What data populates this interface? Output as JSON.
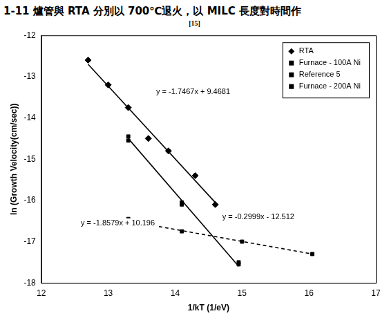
{
  "chart_data": {
    "type": "scatter",
    "title": "1-11 爐管與 RTA 分別以 700℃退火，以 MILC 長度對時間作",
    "subtitle": "[15]",
    "x_label": "1/kT (1/eV)",
    "y_label": "ln (Growth Velocity(cm/sec))",
    "xlim": [
      12,
      17
    ],
    "xticks": [
      12,
      13,
      14,
      15,
      16,
      17
    ],
    "ylim": [
      -18,
      -12
    ],
    "yticks": [
      -18,
      -17,
      -16,
      -15,
      -14,
      -13,
      -12
    ],
    "grid": false,
    "legend": "upper right",
    "series": [
      {
        "name": "RTA",
        "color": "#000000",
        "marker": "diamond",
        "x": [
          12.7,
          13.0,
          13.3,
          13.6,
          13.9,
          14.3,
          14.6
        ],
        "values": [
          -12.6,
          -13.2,
          -13.75,
          -14.5,
          -14.8,
          -15.4,
          -16.1
        ]
      },
      {
        "name": "Furnace - 100A Ni",
        "color": "#000000",
        "marker": "square",
        "x": [
          13.3,
          14.1,
          14.95
        ],
        "values": [
          -14.45,
          -16.1,
          -17.5
        ]
      },
      {
        "name": "Reference 5",
        "color": "#000000",
        "marker": "square",
        "x": [
          13.3,
          14.1,
          15.0,
          16.05
        ],
        "values": [
          -16.45,
          -16.75,
          -17.0,
          -17.3
        ]
      },
      {
        "name": "Furnace - 200A Ni",
        "color": "#000000",
        "marker": "square",
        "x": [
          13.3,
          14.1,
          14.95
        ],
        "values": [
          -14.55,
          -16.05,
          -17.55
        ]
      }
    ],
    "fits": [
      {
        "label": "y = -1.7467x + 9.4681",
        "color": "#000000",
        "line_style": "solid",
        "x": [
          12.7,
          14.6
        ],
        "values": [
          -12.7,
          -16.05
        ]
      },
      {
        "label": "y = -1.8579x + 10.196",
        "color": "#000000",
        "line_style": "solid",
        "x": [
          13.3,
          14.95
        ],
        "values": [
          -14.5,
          -17.6
        ]
      },
      {
        "label": "y = -0.2999x - 12.512",
        "color": "#000000",
        "line_style": "dashed",
        "x": [
          13.3,
          16.05
        ],
        "values": [
          -16.5,
          -17.3
        ]
      }
    ]
  }
}
